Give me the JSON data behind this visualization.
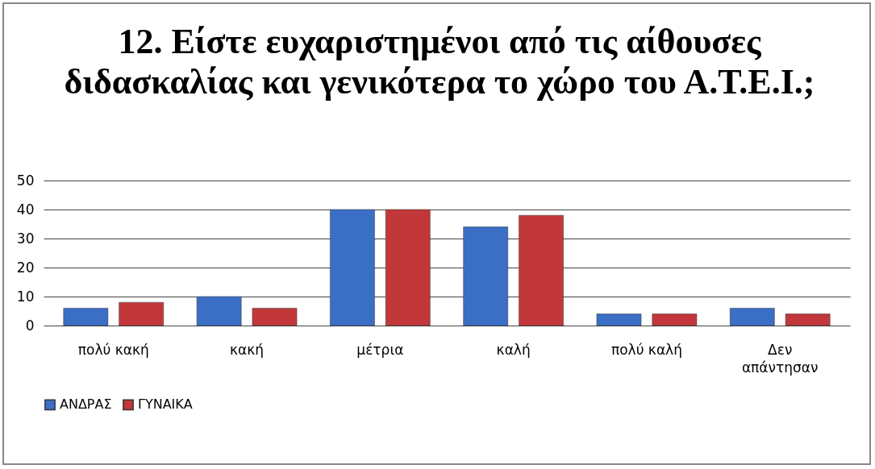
{
  "chart_data": {
    "type": "bar",
    "title": "12. Είστε ευχαριστημένοι από τις αίθουσες διδασκαλίας και γενικότερα το χώρο του Α.Τ.Ε.Ι.;",
    "categories": [
      "πολύ κακή",
      "κακή",
      "μέτρια",
      "καλή",
      "πολύ καλή",
      "Δεν απάντησαν"
    ],
    "series": [
      {
        "name": "ΑΝΔΡΑΣ",
        "color": "#3b6fc6",
        "values": [
          6,
          10,
          40,
          34,
          4,
          6
        ]
      },
      {
        "name": "ΓΥΝΑΙΚΑ",
        "color": "#c2383a",
        "values": [
          8,
          6,
          40,
          38,
          4,
          4
        ]
      }
    ],
    "ylim": [
      0,
      50
    ],
    "yticks": [
      0,
      10,
      20,
      30,
      40,
      50
    ],
    "grid": "y",
    "legend": "bottom"
  }
}
